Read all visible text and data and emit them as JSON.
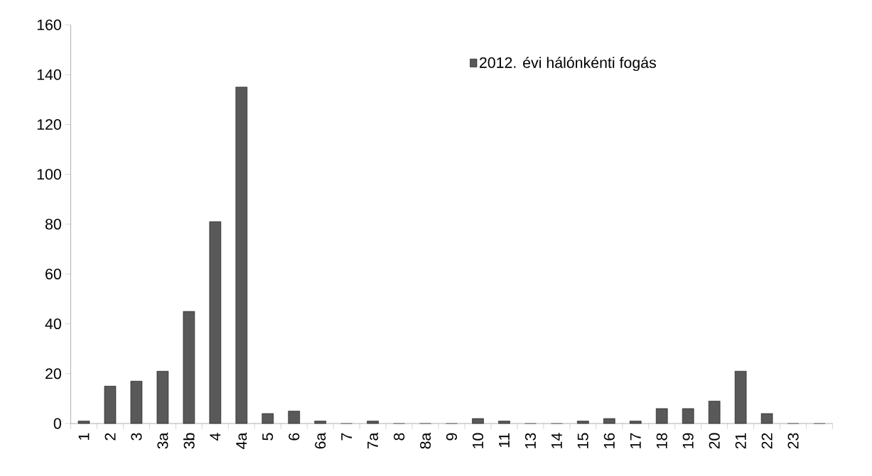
{
  "chart_data": {
    "type": "bar",
    "categories": [
      "1",
      "2",
      "3",
      "3a",
      "3b",
      "4",
      "4a",
      "5",
      "6",
      "6a",
      "7",
      "7a",
      "8",
      "8a",
      "9",
      "10",
      "11",
      "13",
      "14",
      "15",
      "16",
      "17",
      "18",
      "19",
      "20",
      "21",
      "22",
      "23",
      null
    ],
    "series": [
      {
        "name": "2012. évi hálónkénti fogás",
        "color": "#595959",
        "values": [
          1,
          15,
          17,
          21,
          45,
          81,
          135,
          4,
          5,
          1,
          0,
          1,
          0,
          0,
          0,
          2,
          1,
          0,
          0,
          1,
          2,
          1,
          6,
          6,
          9,
          21,
          4,
          0,
          0
        ]
      }
    ],
    "ylim": [
      0,
      160
    ],
    "yticks": [
      0,
      20,
      40,
      60,
      80,
      100,
      120,
      140,
      160
    ],
    "legend": "top right",
    "grid": false
  }
}
